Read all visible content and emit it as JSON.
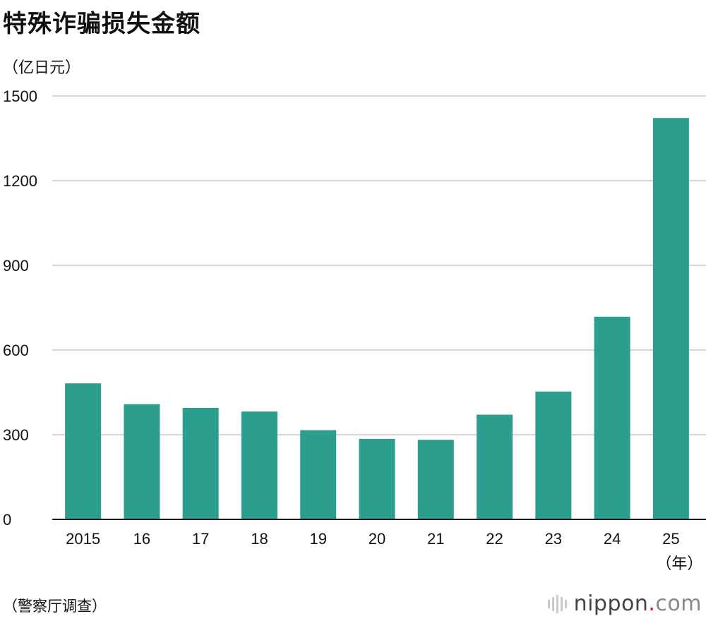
{
  "chart_data": {
    "type": "bar",
    "title": "特殊诈骗损失金额",
    "ylabel": "（亿日元）",
    "xlabel_unit": "（年）",
    "categories": [
      "2015",
      "16",
      "17",
      "18",
      "19",
      "20",
      "21",
      "22",
      "23",
      "24",
      "25"
    ],
    "values": [
      482,
      408,
      395,
      382,
      316,
      285,
      282,
      371,
      453,
      718,
      1422
    ],
    "ylim": [
      0,
      1500
    ],
    "yticks": [
      0,
      300,
      600,
      900,
      1200,
      1500
    ],
    "grid": true,
    "bar_color": "#2b9e8e",
    "grid_color": "#c8c8c8"
  },
  "source": "（警察厅调查）",
  "logo": {
    "name": "nippon",
    "dot": ".",
    "tld": "com"
  }
}
